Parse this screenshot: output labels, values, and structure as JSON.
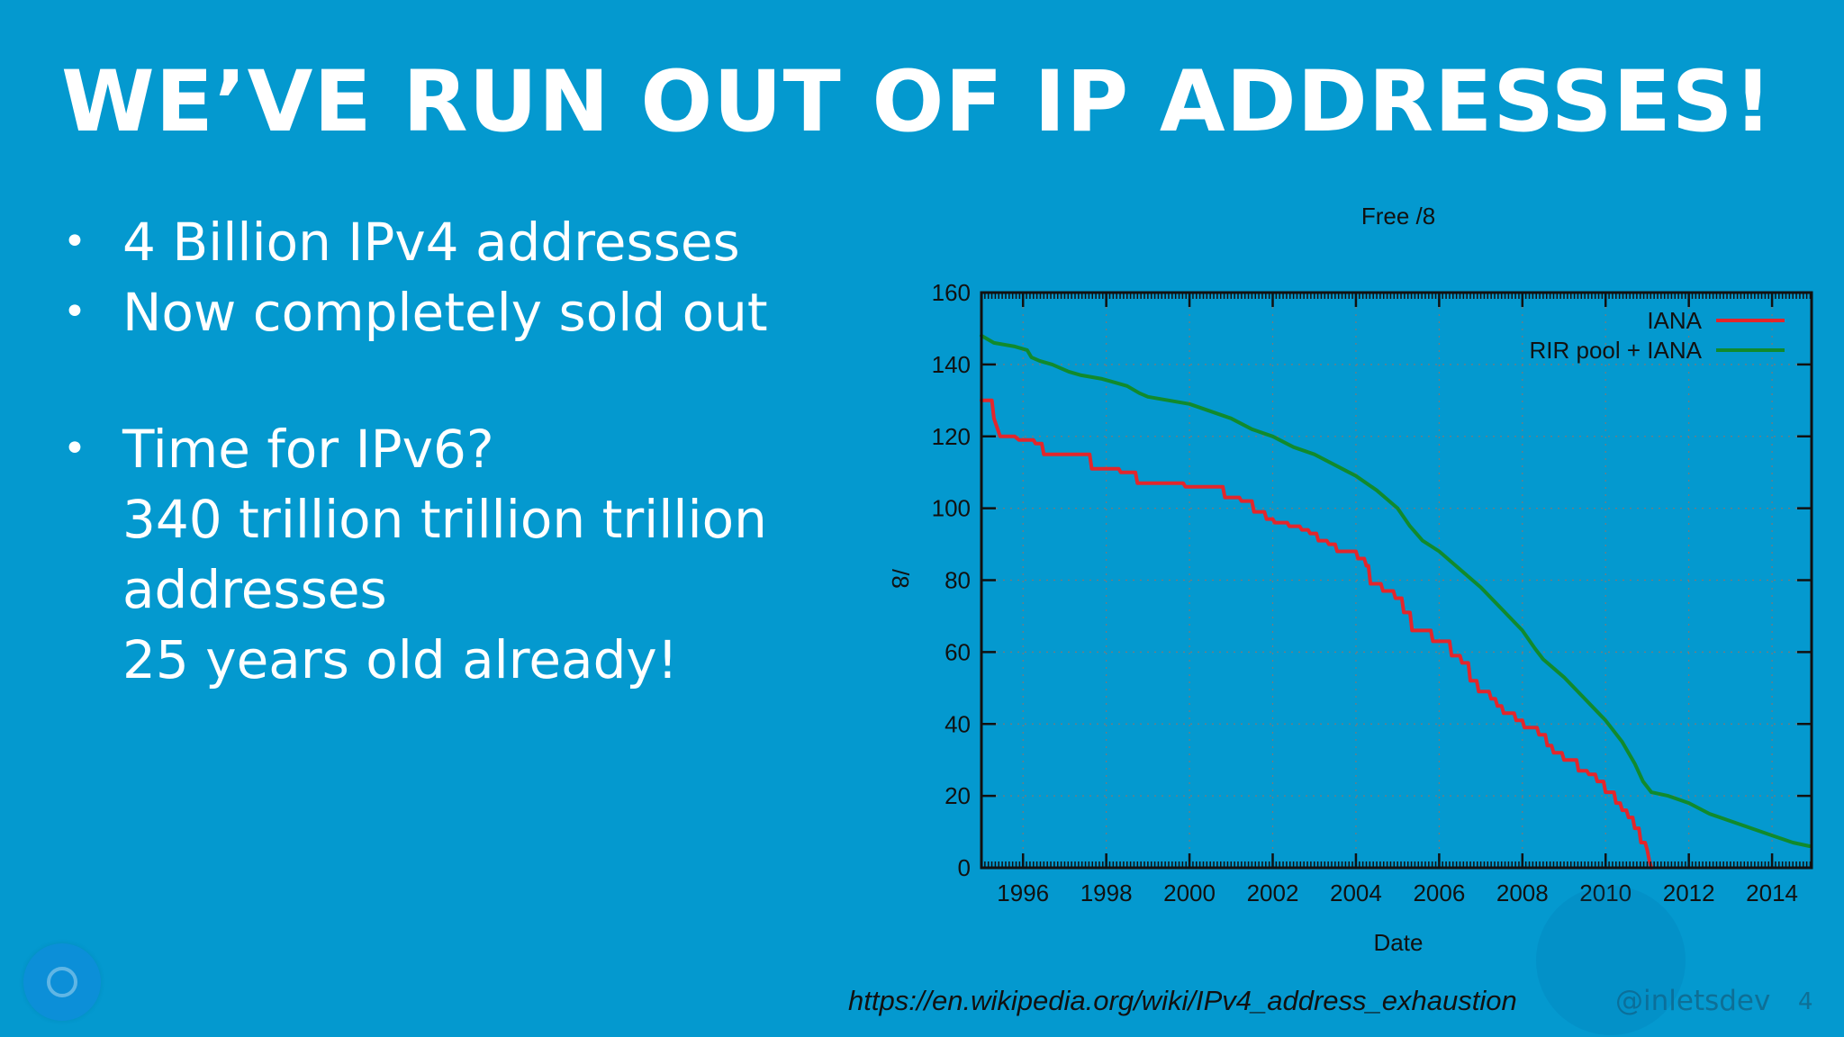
{
  "slide": {
    "title": "WE’VE RUN OUT OF IP ADDRESSES!",
    "bullets": [
      {
        "lines": [
          "4 Billion IPv4 addresses"
        ]
      },
      {
        "lines": [
          "Now completely sold out"
        ]
      },
      {
        "lines": [
          "Time for IPv6?",
          "340 trillion trillion trillion",
          "addresses",
          "25 years old already!"
        ]
      }
    ],
    "source_url": "https://en.wikipedia.org/wiki/IPv4_address_exhaustion",
    "handle": "@inletsdev",
    "page_number": "4"
  },
  "colors": {
    "background": "#0499cf",
    "iana": "#e3262b",
    "rir": "#118a2d"
  },
  "chart_data": {
    "type": "line",
    "title": "Free /8",
    "xlabel": "Date",
    "ylabel": "/8",
    "xlim": [
      1995.0,
      2014.95
    ],
    "ylim": [
      0,
      160
    ],
    "x_ticks": [
      1996,
      1998,
      2000,
      2002,
      2004,
      2006,
      2008,
      2010,
      2012,
      2014
    ],
    "y_ticks": [
      0,
      20,
      40,
      60,
      80,
      100,
      120,
      140,
      160
    ],
    "grid": true,
    "legend_position": "top-right",
    "series": [
      {
        "name": "IANA",
        "color": "#e3262b",
        "step": true,
        "points": [
          [
            1995.0,
            130
          ],
          [
            1995.25,
            130
          ],
          [
            1995.3,
            125
          ],
          [
            1995.45,
            120
          ],
          [
            1995.8,
            120
          ],
          [
            1995.9,
            119
          ],
          [
            1996.25,
            119
          ],
          [
            1996.3,
            118
          ],
          [
            1996.45,
            118
          ],
          [
            1996.5,
            115
          ],
          [
            1997.15,
            115
          ],
          [
            1997.2,
            115
          ],
          [
            1997.6,
            115
          ],
          [
            1997.65,
            111
          ],
          [
            1998.0,
            111
          ],
          [
            1998.05,
            111
          ],
          [
            1998.3,
            111
          ],
          [
            1998.35,
            110
          ],
          [
            1998.7,
            110
          ],
          [
            1998.75,
            107
          ],
          [
            1999.3,
            107
          ],
          [
            1999.5,
            107
          ],
          [
            1999.85,
            107
          ],
          [
            1999.9,
            106
          ],
          [
            2000.4,
            106
          ],
          [
            2000.45,
            106
          ],
          [
            2000.8,
            106
          ],
          [
            2000.85,
            103
          ],
          [
            2001.2,
            103
          ],
          [
            2001.25,
            102
          ],
          [
            2001.5,
            102
          ],
          [
            2001.55,
            99
          ],
          [
            2001.8,
            99
          ],
          [
            2001.85,
            97
          ],
          [
            2002.0,
            97
          ],
          [
            2002.05,
            96
          ],
          [
            2002.35,
            96
          ],
          [
            2002.4,
            95
          ],
          [
            2002.65,
            95
          ],
          [
            2002.7,
            94
          ],
          [
            2002.85,
            94
          ],
          [
            2002.9,
            93
          ],
          [
            2003.05,
            93
          ],
          [
            2003.1,
            91
          ],
          [
            2003.3,
            91
          ],
          [
            2003.35,
            90
          ],
          [
            2003.5,
            90
          ],
          [
            2003.55,
            88
          ],
          [
            2004.0,
            88
          ],
          [
            2004.05,
            86
          ],
          [
            2004.2,
            86
          ],
          [
            2004.25,
            84
          ],
          [
            2004.3,
            84
          ],
          [
            2004.35,
            79
          ],
          [
            2004.6,
            79
          ],
          [
            2004.65,
            77
          ],
          [
            2004.9,
            77
          ],
          [
            2004.95,
            75
          ],
          [
            2005.1,
            75
          ],
          [
            2005.15,
            71
          ],
          [
            2005.3,
            71
          ],
          [
            2005.35,
            66
          ],
          [
            2005.8,
            66
          ],
          [
            2005.85,
            63
          ],
          [
            2006.25,
            63
          ],
          [
            2006.3,
            59
          ],
          [
            2006.5,
            59
          ],
          [
            2006.55,
            57
          ],
          [
            2006.7,
            57
          ],
          [
            2006.75,
            52
          ],
          [
            2006.9,
            52
          ],
          [
            2006.95,
            49
          ],
          [
            2007.2,
            49
          ],
          [
            2007.25,
            47
          ],
          [
            2007.35,
            47
          ],
          [
            2007.4,
            45
          ],
          [
            2007.5,
            45
          ],
          [
            2007.55,
            43
          ],
          [
            2007.8,
            43
          ],
          [
            2007.85,
            41
          ],
          [
            2008.0,
            41
          ],
          [
            2008.05,
            39
          ],
          [
            2008.35,
            39
          ],
          [
            2008.4,
            37
          ],
          [
            2008.55,
            37
          ],
          [
            2008.6,
            34
          ],
          [
            2008.7,
            34
          ],
          [
            2008.75,
            32
          ],
          [
            2008.95,
            32
          ],
          [
            2009.0,
            30
          ],
          [
            2009.3,
            30
          ],
          [
            2009.35,
            27
          ],
          [
            2009.55,
            27
          ],
          [
            2009.6,
            26
          ],
          [
            2009.75,
            26
          ],
          [
            2009.8,
            24
          ],
          [
            2009.95,
            24
          ],
          [
            2010.0,
            21
          ],
          [
            2010.2,
            21
          ],
          [
            2010.25,
            18
          ],
          [
            2010.35,
            18
          ],
          [
            2010.4,
            16
          ],
          [
            2010.5,
            16
          ],
          [
            2010.55,
            14
          ],
          [
            2010.65,
            14
          ],
          [
            2010.7,
            11
          ],
          [
            2010.8,
            11
          ],
          [
            2010.85,
            7
          ],
          [
            2010.95,
            7
          ],
          [
            2011.0,
            5
          ],
          [
            2011.05,
            2
          ],
          [
            2011.1,
            0
          ]
        ]
      },
      {
        "name": "RIR pool + IANA",
        "color": "#118a2d",
        "step": false,
        "points": [
          [
            1995.0,
            148
          ],
          [
            1995.3,
            146
          ],
          [
            1995.8,
            145
          ],
          [
            1996.1,
            144
          ],
          [
            1996.2,
            142
          ],
          [
            1996.4,
            141
          ],
          [
            1996.7,
            140
          ],
          [
            1996.9,
            139
          ],
          [
            1997.1,
            138
          ],
          [
            1997.4,
            137
          ],
          [
            1997.9,
            136
          ],
          [
            1998.2,
            135
          ],
          [
            1998.5,
            134
          ],
          [
            1998.8,
            132
          ],
          [
            1999.0,
            131
          ],
          [
            1999.5,
            130
          ],
          [
            2000.0,
            129
          ],
          [
            2000.5,
            127
          ],
          [
            2001.0,
            125
          ],
          [
            2001.5,
            122
          ],
          [
            2002.0,
            120
          ],
          [
            2002.5,
            117
          ],
          [
            2003.0,
            115
          ],
          [
            2003.5,
            112
          ],
          [
            2004.0,
            109
          ],
          [
            2004.5,
            105
          ],
          [
            2004.8,
            102
          ],
          [
            2005.0,
            100
          ],
          [
            2005.3,
            95
          ],
          [
            2005.6,
            91
          ],
          [
            2006.0,
            88
          ],
          [
            2006.5,
            83
          ],
          [
            2007.0,
            78
          ],
          [
            2007.5,
            72
          ],
          [
            2008.0,
            66
          ],
          [
            2008.3,
            61
          ],
          [
            2008.5,
            58
          ],
          [
            2009.0,
            53
          ],
          [
            2009.5,
            47
          ],
          [
            2010.0,
            41
          ],
          [
            2010.4,
            35
          ],
          [
            2010.7,
            29
          ],
          [
            2010.9,
            24
          ],
          [
            2011.1,
            21
          ],
          [
            2011.5,
            20
          ],
          [
            2012.0,
            18
          ],
          [
            2012.5,
            15
          ],
          [
            2013.0,
            13
          ],
          [
            2013.5,
            11
          ],
          [
            2014.0,
            9
          ],
          [
            2014.5,
            7
          ],
          [
            2014.9,
            6
          ]
        ]
      }
    ]
  }
}
